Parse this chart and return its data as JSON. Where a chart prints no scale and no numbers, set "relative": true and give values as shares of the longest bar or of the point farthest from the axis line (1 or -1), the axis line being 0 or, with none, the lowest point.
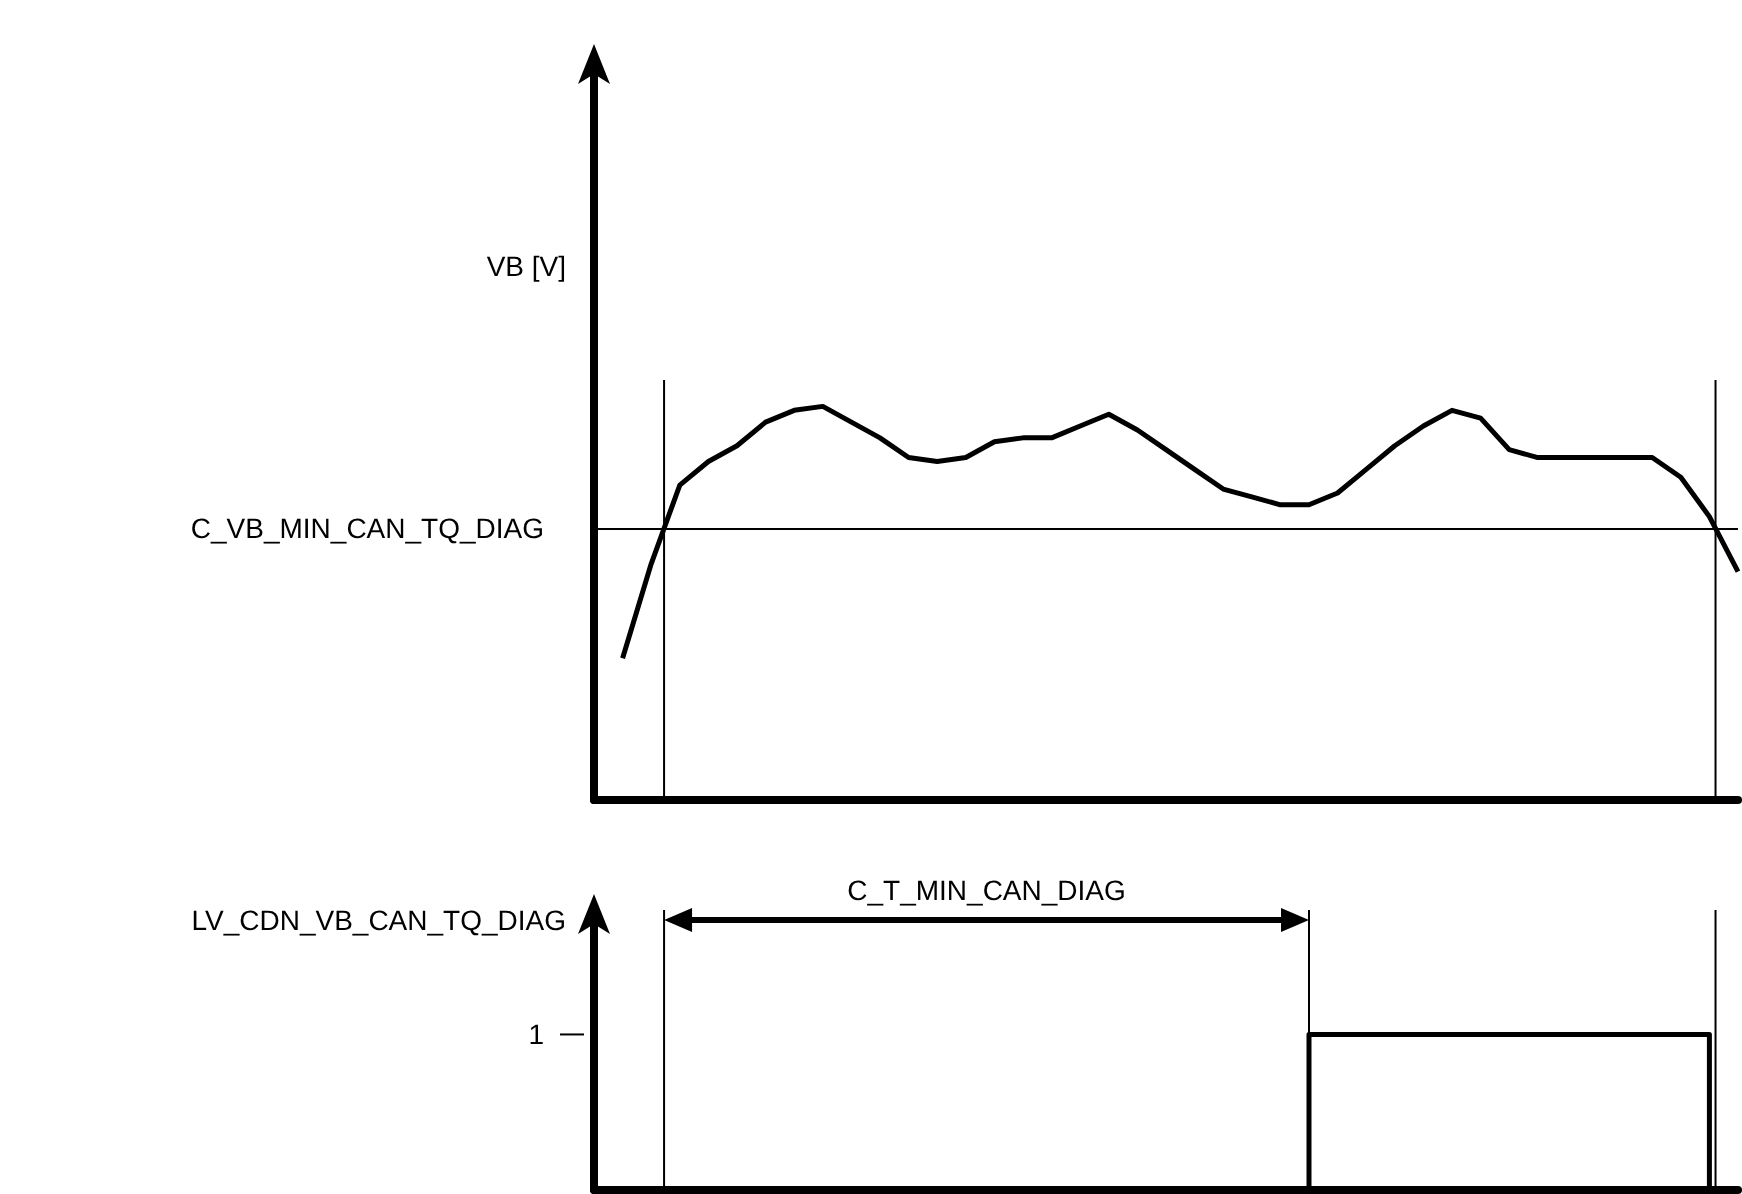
{
  "chart_data": [
    {
      "type": "line",
      "ylabel": "VB [V]",
      "relative": true,
      "tick_labels": false,
      "color": "#000000",
      "categories": [
        null,
        null,
        null,
        null,
        null,
        null,
        null,
        null,
        null,
        null,
        null,
        null,
        null,
        null,
        null,
        null,
        null,
        null,
        null,
        null,
        null,
        null,
        null,
        null,
        null,
        null,
        null,
        null,
        null,
        null,
        null,
        null,
        null,
        null,
        null,
        null,
        null,
        null,
        null,
        null,
        null
      ],
      "values": [
        null,
        0.36,
        0.6,
        0.8,
        0.86,
        0.9,
        0.96,
        0.99,
        1.0,
        0.96,
        0.92,
        0.87,
        0.86,
        0.87,
        0.91,
        0.92,
        0.92,
        0.95,
        0.98,
        0.94,
        0.89,
        0.84,
        0.79,
        0.77,
        0.75,
        0.75,
        0.78,
        0.84,
        0.9,
        0.95,
        0.99,
        0.97,
        0.89,
        0.87,
        0.87,
        0.87,
        0.87,
        0.87,
        0.82,
        0.72,
        0.58
      ],
      "ref_lines": [
        {
          "axis": "y",
          "value": 0.69,
          "label": "C_VB_MIN_CAN_TQ_DIAG"
        }
      ]
    },
    {
      "type": "step",
      "ylabel": "LV_CDN_VB_CAN_TQ_DIAG",
      "relative": true,
      "tick_labels": false,
      "color": "#000000",
      "categories": [
        null,
        null,
        null,
        null,
        null,
        null,
        null,
        null,
        null,
        null,
        null,
        null,
        null,
        null,
        null,
        null,
        null,
        null,
        null,
        null,
        null,
        null,
        null,
        null,
        null,
        null,
        null,
        null,
        null,
        null,
        null,
        null,
        null,
        null,
        null,
        null,
        null,
        null,
        null,
        null,
        null
      ],
      "values": [
        0,
        0,
        0,
        0,
        0,
        0,
        0,
        0,
        0,
        0,
        0,
        0,
        0,
        0,
        0,
        0,
        0,
        0,
        0,
        0,
        0,
        0,
        0,
        0,
        0,
        1,
        1,
        1,
        1,
        1,
        1,
        1,
        1,
        1,
        1,
        1,
        1,
        1,
        1,
        0,
        0
      ],
      "annotations": [
        "C_T_MIN_CAN_DIAG",
        "1"
      ]
    }
  ]
}
